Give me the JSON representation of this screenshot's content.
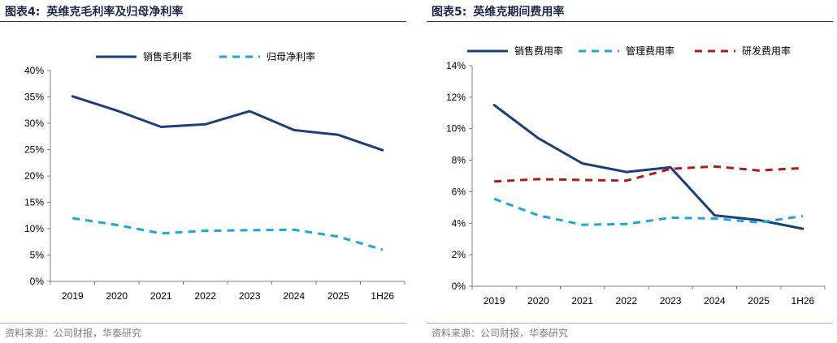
{
  "panels": [
    {
      "title_number": "图表4:",
      "title_text": "英维克毛利率及归母净利率",
      "source": "资料来源：公司财报，华泰研究",
      "chart_data": {
        "type": "line",
        "categories": [
          "2019",
          "2020",
          "2021",
          "2022",
          "2023",
          "2024",
          "2025",
          "1H26"
        ],
        "ylim": [
          0,
          40
        ],
        "ytick_step": 5,
        "ytick_suffix": "%",
        "grid": false,
        "legend": "top",
        "series": [
          {
            "name": "销售毛利率",
            "values": [
              35.1,
              32.4,
              29.3,
              29.8,
              32.3,
              28.7,
              27.8,
              24.9
            ],
            "color": "#1a3f7a",
            "style": "solid"
          },
          {
            "name": "归母净利率",
            "values": [
              12.0,
              10.7,
              9.1,
              9.6,
              9.7,
              9.8,
              8.5,
              6.0
            ],
            "color": "#1aa7e0",
            "style": "dashed"
          }
        ]
      }
    },
    {
      "title_number": "图表5:",
      "title_text": "英维克期间费用率",
      "source": "资料来源：公司财报，华泰研究",
      "chart_data": {
        "type": "line",
        "categories": [
          "2019",
          "2020",
          "2021",
          "2022",
          "2023",
          "2024",
          "2025",
          "1H26"
        ],
        "ylim": [
          0,
          14
        ],
        "ytick_step": 2,
        "ytick_suffix": "%",
        "grid": false,
        "legend": "top",
        "series": [
          {
            "name": "销售费用率",
            "values": [
              11.5,
              9.4,
              7.8,
              7.25,
              7.55,
              4.5,
              4.2,
              3.65
            ],
            "color": "#1a3f7a",
            "style": "solid"
          },
          {
            "name": "管理费用率",
            "values": [
              5.55,
              4.5,
              3.9,
              3.95,
              4.35,
              4.3,
              4.05,
              4.45
            ],
            "color": "#1aa7e0",
            "style": "dashed"
          },
          {
            "name": "研发费用率",
            "values": [
              6.65,
              6.8,
              6.75,
              6.7,
              7.45,
              7.6,
              7.35,
              7.5
            ],
            "color": "#b01919",
            "style": "dashed"
          }
        ]
      }
    }
  ]
}
